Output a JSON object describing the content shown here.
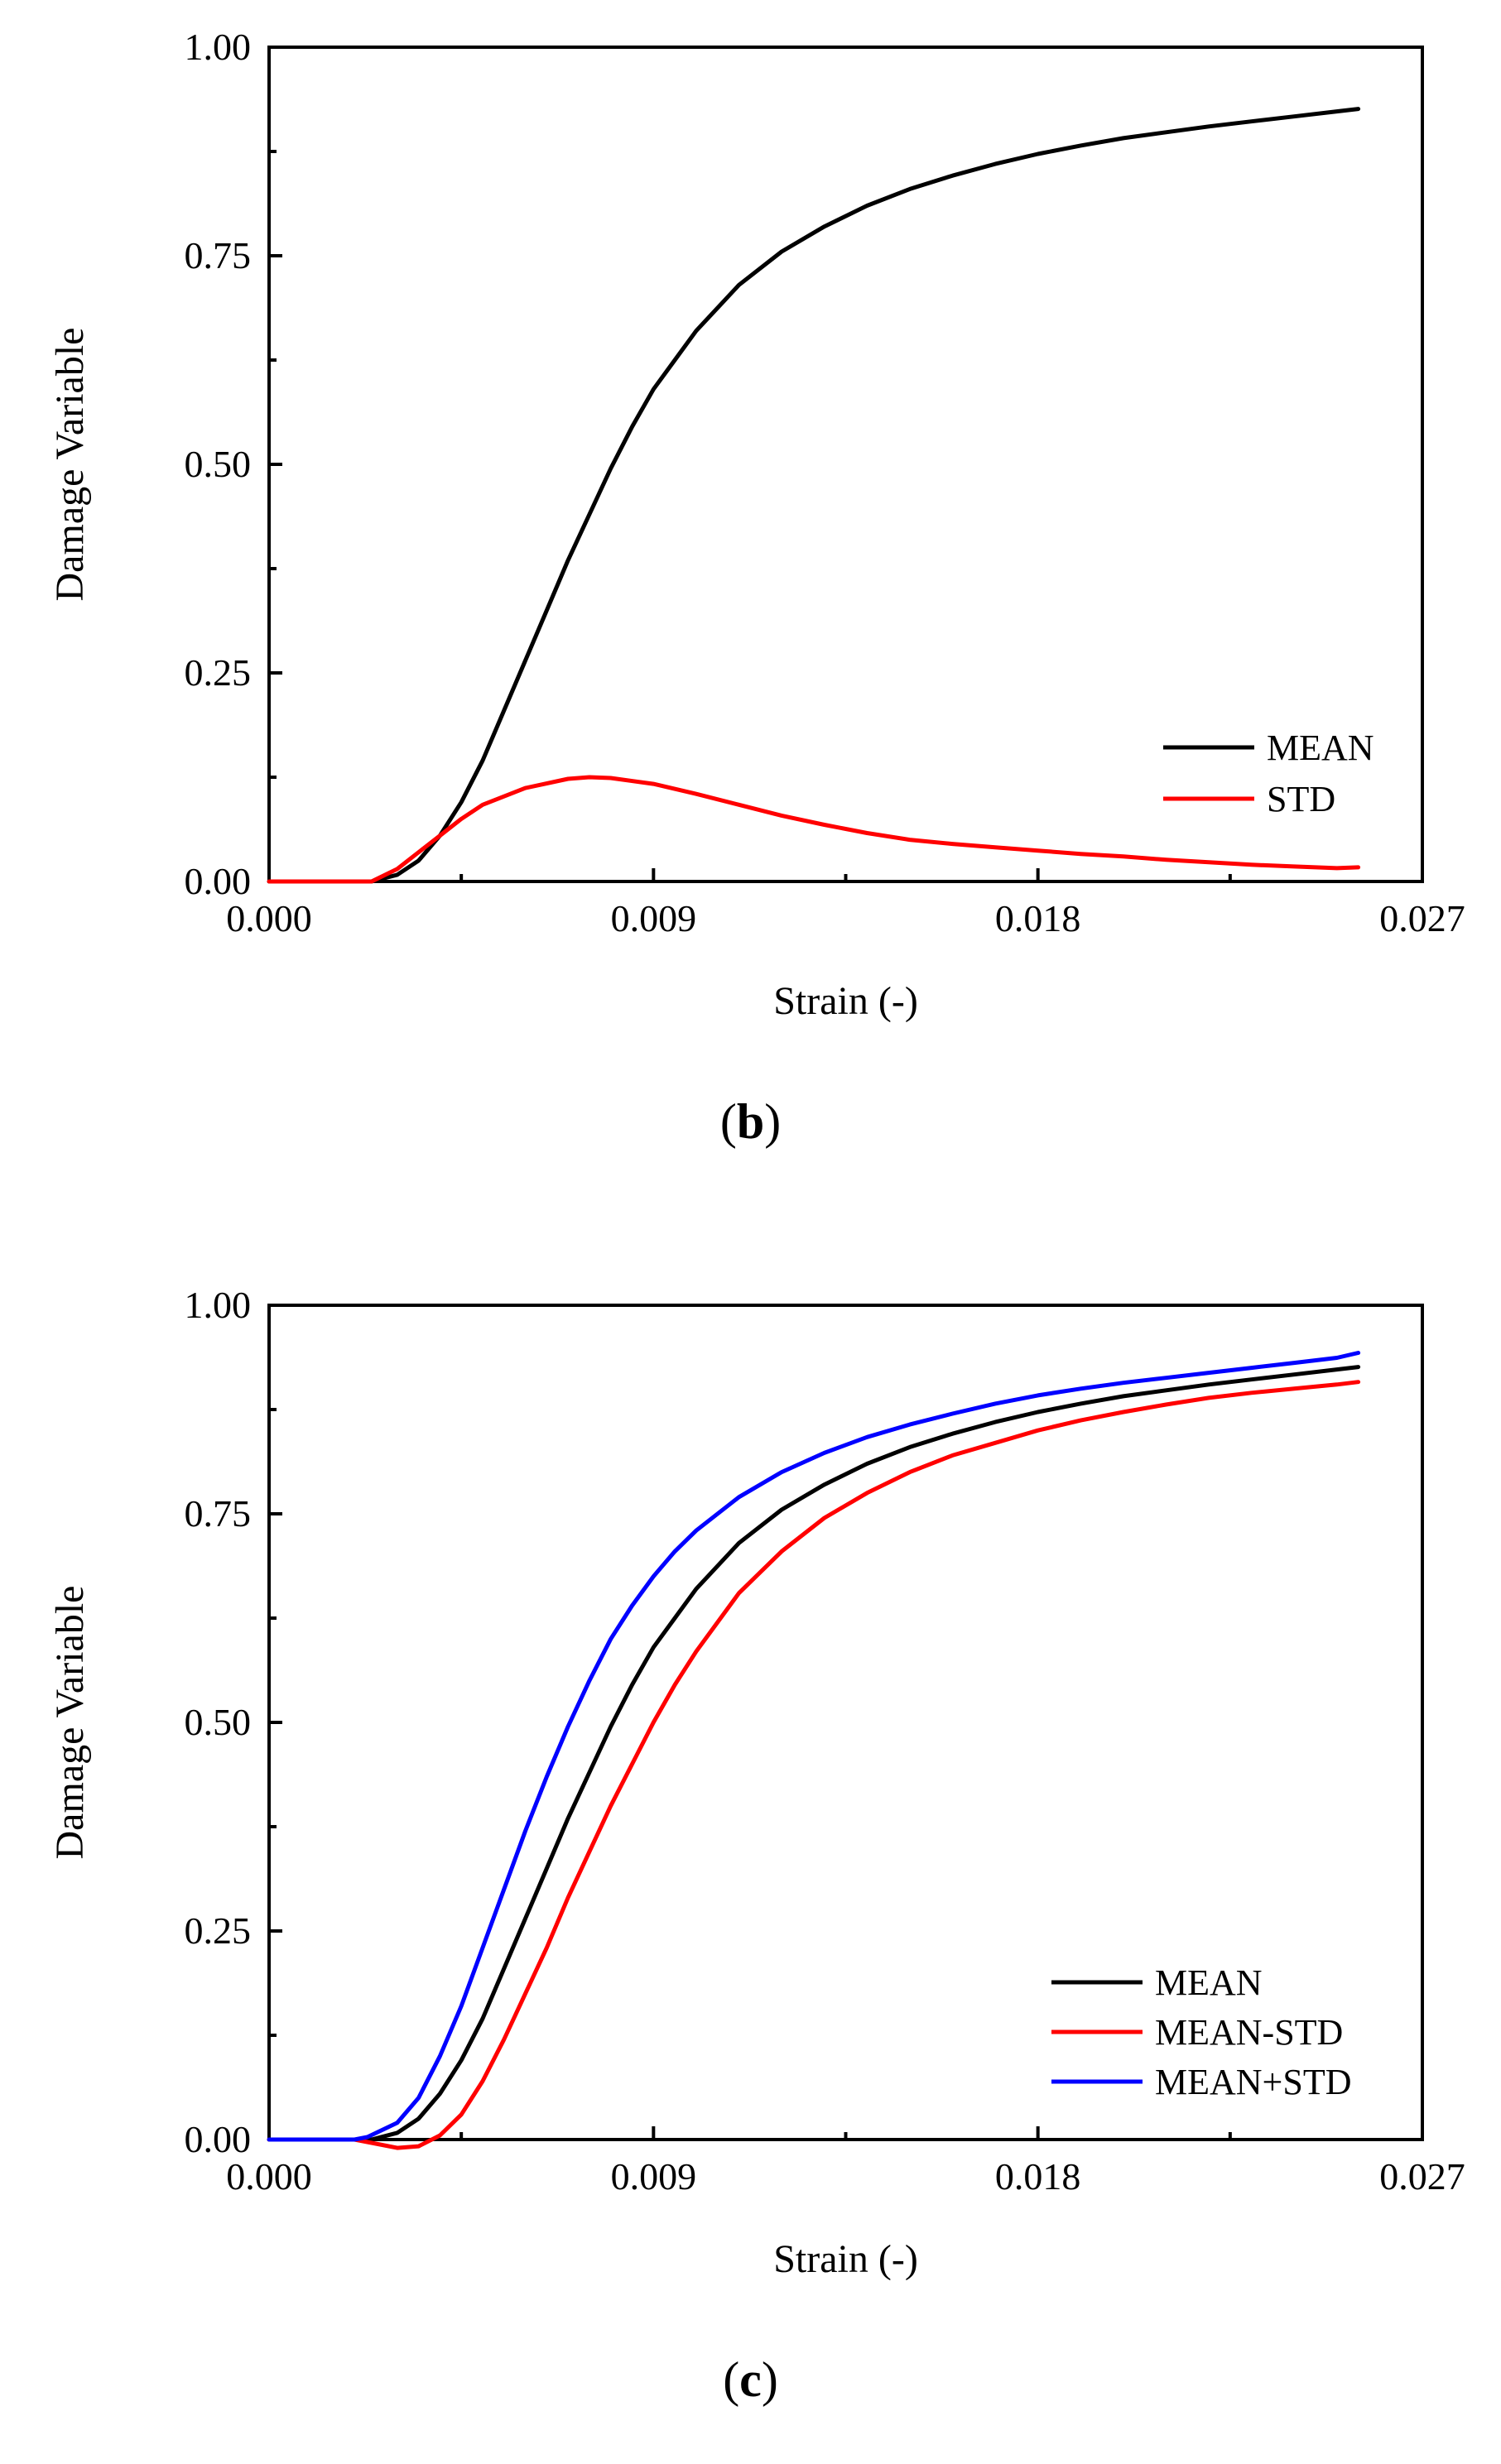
{
  "chart_data": [
    {
      "type": "line",
      "panel_label": "b",
      "xlabel": "Strain (-)",
      "ylabel": "Damage Variable",
      "xlim": [
        0,
        0.027
      ],
      "ylim": [
        0,
        1
      ],
      "xticks": [
        "0.000",
        "0.009",
        "0.018",
        "0.027"
      ],
      "yticks": [
        "0.00",
        "0.25",
        "0.50",
        "0.75",
        "1.00"
      ],
      "legend_position": "bottom-right",
      "series": [
        {
          "name": "MEAN",
          "color": "#000000",
          "x": [
            0,
            0.002,
            0.0024,
            0.003,
            0.0035,
            0.004,
            0.0045,
            0.005,
            0.0055,
            0.006,
            0.0065,
            0.007,
            0.0075,
            0.008,
            0.0085,
            0.009,
            0.0095,
            0.01,
            0.011,
            0.012,
            0.013,
            0.014,
            0.015,
            0.016,
            0.017,
            0.018,
            0.019,
            0.02,
            0.021,
            0.022,
            0.023,
            0.024,
            0.025,
            0.0255
          ],
          "y": [
            0,
            0,
            0,
            0.008,
            0.025,
            0.055,
            0.095,
            0.145,
            0.205,
            0.265,
            0.325,
            0.385,
            0.44,
            0.495,
            0.545,
            0.59,
            0.625,
            0.66,
            0.715,
            0.755,
            0.785,
            0.81,
            0.83,
            0.846,
            0.86,
            0.872,
            0.882,
            0.891,
            0.898,
            0.905,
            0.911,
            0.917,
            0.923,
            0.926
          ]
        },
        {
          "name": "STD",
          "color": "#ff0000",
          "x": [
            0,
            0.002,
            0.0024,
            0.003,
            0.0035,
            0.004,
            0.0045,
            0.005,
            0.006,
            0.007,
            0.0075,
            0.008,
            0.009,
            0.01,
            0.011,
            0.012,
            0.013,
            0.014,
            0.015,
            0.016,
            0.017,
            0.018,
            0.019,
            0.02,
            0.021,
            0.022,
            0.023,
            0.024,
            0.025,
            0.0255
          ],
          "y": [
            0,
            0,
            0,
            0.015,
            0.035,
            0.055,
            0.075,
            0.092,
            0.112,
            0.123,
            0.125,
            0.124,
            0.117,
            0.105,
            0.092,
            0.079,
            0.068,
            0.058,
            0.05,
            0.045,
            0.041,
            0.037,
            0.033,
            0.03,
            0.026,
            0.023,
            0.02,
            0.018,
            0.016,
            0.017
          ]
        }
      ]
    },
    {
      "type": "line",
      "panel_label": "c",
      "xlabel": "Strain (-)",
      "ylabel": "Damage Variable",
      "xlim": [
        0,
        0.027
      ],
      "ylim": [
        0,
        1
      ],
      "xticks": [
        "0.000",
        "0.009",
        "0.018",
        "0.027"
      ],
      "yticks": [
        "0.00",
        "0.25",
        "0.50",
        "0.75",
        "1.00"
      ],
      "legend_position": "bottom-right",
      "series": [
        {
          "name": "MEAN",
          "color": "#000000",
          "x": [
            0,
            0.002,
            0.0024,
            0.003,
            0.0035,
            0.004,
            0.0045,
            0.005,
            0.0055,
            0.006,
            0.0065,
            0.007,
            0.0075,
            0.008,
            0.0085,
            0.009,
            0.0095,
            0.01,
            0.011,
            0.012,
            0.013,
            0.014,
            0.015,
            0.016,
            0.017,
            0.018,
            0.019,
            0.02,
            0.021,
            0.022,
            0.023,
            0.024,
            0.025,
            0.0255
          ],
          "y": [
            0,
            0,
            0,
            0.008,
            0.025,
            0.055,
            0.095,
            0.145,
            0.205,
            0.265,
            0.325,
            0.385,
            0.44,
            0.495,
            0.545,
            0.59,
            0.625,
            0.66,
            0.715,
            0.755,
            0.785,
            0.81,
            0.83,
            0.846,
            0.86,
            0.872,
            0.882,
            0.891,
            0.898,
            0.905,
            0.911,
            0.917,
            0.923,
            0.926
          ]
        },
        {
          "name": "MEAN-STD",
          "color": "#ff0000",
          "x": [
            0,
            0.002,
            0.0025,
            0.003,
            0.0035,
            0.004,
            0.0045,
            0.005,
            0.0055,
            0.006,
            0.0065,
            0.007,
            0.0075,
            0.008,
            0.0085,
            0.009,
            0.0095,
            0.01,
            0.011,
            0.012,
            0.013,
            0.014,
            0.015,
            0.016,
            0.017,
            0.018,
            0.019,
            0.02,
            0.021,
            0.022,
            0.023,
            0.024,
            0.025,
            0.0255
          ],
          "y": [
            0,
            0,
            -0.005,
            -0.01,
            -0.008,
            0.005,
            0.03,
            0.07,
            0.12,
            0.175,
            0.23,
            0.29,
            0.345,
            0.4,
            0.45,
            0.5,
            0.545,
            0.585,
            0.655,
            0.705,
            0.745,
            0.775,
            0.8,
            0.82,
            0.835,
            0.85,
            0.862,
            0.872,
            0.881,
            0.889,
            0.895,
            0.9,
            0.905,
            0.908
          ]
        },
        {
          "name": "MEAN+STD",
          "color": "#0000ff",
          "x": [
            0,
            0.002,
            0.0023,
            0.003,
            0.0035,
            0.004,
            0.0045,
            0.005,
            0.0055,
            0.006,
            0.0065,
            0.007,
            0.0075,
            0.008,
            0.0085,
            0.009,
            0.0095,
            0.01,
            0.011,
            0.012,
            0.013,
            0.014,
            0.015,
            0.016,
            0.017,
            0.018,
            0.019,
            0.02,
            0.021,
            0.022,
            0.023,
            0.024,
            0.025,
            0.0255
          ],
          "y": [
            0,
            0,
            0.003,
            0.02,
            0.05,
            0.1,
            0.16,
            0.23,
            0.3,
            0.37,
            0.435,
            0.495,
            0.55,
            0.6,
            0.64,
            0.675,
            0.705,
            0.73,
            0.77,
            0.8,
            0.823,
            0.842,
            0.857,
            0.87,
            0.882,
            0.892,
            0.9,
            0.907,
            0.913,
            0.919,
            0.925,
            0.931,
            0.937,
            0.943
          ]
        }
      ]
    }
  ]
}
